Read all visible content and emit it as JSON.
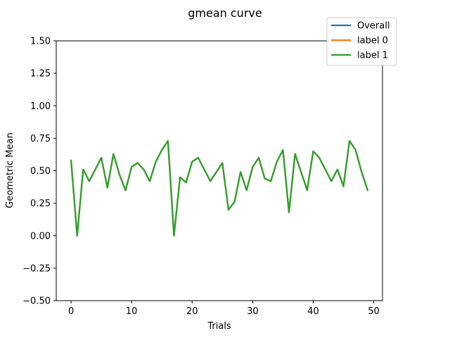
{
  "chart_data": {
    "type": "line",
    "title": "gmean curve",
    "xlabel": "Trials",
    "ylabel": "Geometric Mean",
    "xlim": [
      -2.45,
      51.45
    ],
    "ylim": [
      -0.5,
      1.5
    ],
    "xticks": [
      0,
      10,
      20,
      30,
      40,
      50
    ],
    "xtick_labels": [
      "0",
      "10",
      "20",
      "30",
      "40",
      "50"
    ],
    "yticks": [
      -0.5,
      -0.25,
      0.0,
      0.25,
      0.5,
      0.75,
      1.0,
      1.25,
      1.5
    ],
    "ytick_labels": [
      "−0.50",
      "−0.25",
      "0.00",
      "0.25",
      "0.50",
      "0.75",
      "1.00",
      "1.25",
      "1.50"
    ],
    "grid": false,
    "legend_position": "top-right",
    "x": [
      0,
      1,
      2,
      3,
      4,
      5,
      6,
      7,
      8,
      9,
      10,
      11,
      12,
      13,
      14,
      15,
      16,
      17,
      18,
      19,
      20,
      21,
      22,
      23,
      24,
      25,
      26,
      27,
      28,
      29,
      30,
      31,
      32,
      33,
      34,
      35,
      36,
      37,
      38,
      39,
      40,
      41,
      42,
      43,
      44,
      45,
      46,
      47,
      48,
      49
    ],
    "series": [
      {
        "name": "Overall",
        "color": "#1f77b4",
        "values": [
          0.58,
          0.0,
          0.51,
          0.42,
          0.51,
          0.6,
          0.37,
          0.63,
          0.47,
          0.35,
          0.53,
          0.56,
          0.51,
          0.42,
          0.57,
          0.66,
          0.73,
          0.0,
          0.45,
          0.41,
          0.57,
          0.6,
          0.51,
          0.42,
          0.49,
          0.56,
          0.2,
          0.26,
          0.49,
          0.35,
          0.53,
          0.6,
          0.44,
          0.42,
          0.57,
          0.66,
          0.18,
          0.63,
          0.49,
          0.35,
          0.65,
          0.6,
          0.51,
          0.42,
          0.51,
          0.38,
          0.73,
          0.66,
          0.49,
          0.35
        ]
      },
      {
        "name": "label 0",
        "color": "#ff7f0e",
        "values": [
          0.58,
          0.0,
          0.51,
          0.42,
          0.51,
          0.6,
          0.37,
          0.63,
          0.47,
          0.35,
          0.53,
          0.56,
          0.51,
          0.42,
          0.57,
          0.66,
          0.73,
          0.0,
          0.45,
          0.41,
          0.57,
          0.6,
          0.51,
          0.42,
          0.49,
          0.56,
          0.2,
          0.26,
          0.49,
          0.35,
          0.53,
          0.6,
          0.44,
          0.42,
          0.57,
          0.66,
          0.18,
          0.63,
          0.49,
          0.35,
          0.65,
          0.6,
          0.51,
          0.42,
          0.51,
          0.38,
          0.73,
          0.66,
          0.49,
          0.35
        ]
      },
      {
        "name": "label 1",
        "color": "#2ca02c",
        "values": [
          0.58,
          0.0,
          0.51,
          0.42,
          0.51,
          0.6,
          0.37,
          0.63,
          0.47,
          0.35,
          0.53,
          0.56,
          0.51,
          0.42,
          0.57,
          0.66,
          0.73,
          0.0,
          0.45,
          0.41,
          0.57,
          0.6,
          0.51,
          0.42,
          0.49,
          0.56,
          0.2,
          0.26,
          0.49,
          0.35,
          0.53,
          0.6,
          0.44,
          0.42,
          0.57,
          0.66,
          0.18,
          0.63,
          0.49,
          0.35,
          0.65,
          0.6,
          0.51,
          0.42,
          0.51,
          0.38,
          0.73,
          0.66,
          0.49,
          0.35
        ]
      }
    ]
  }
}
